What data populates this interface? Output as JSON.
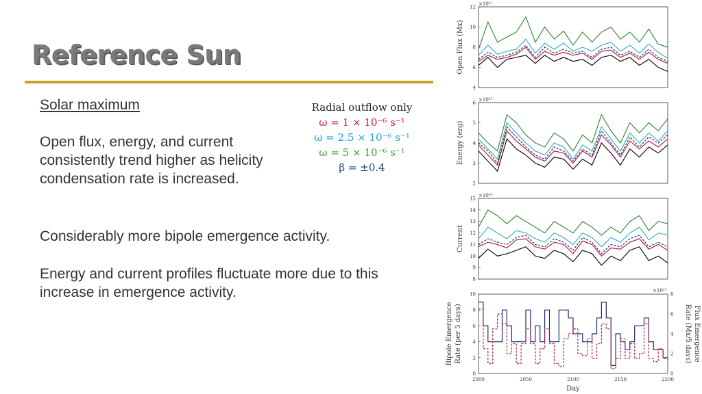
{
  "slide": {
    "title": "Reference Sun",
    "heading": "Solar maximum",
    "paragraph1": "Open flux, energy, and current consistently trend higher as helicity condensation rate is increased.",
    "paragraph2": "Considerably more bipole emergence activity.",
    "paragraph3": "Energy and current profiles fluctuate more due to this increase in emergence activity."
  },
  "legend": {
    "header": "Radial outflow only",
    "items": [
      {
        "label": "ω = 1 × 10⁻⁶ s⁻¹",
        "color": "#d01c2e"
      },
      {
        "label": "ω = 2.5 × 10⁻⁶ s⁻¹",
        "color": "#1a9fd6"
      },
      {
        "label": "ω = 5 × 10⁻⁶ s⁻¹",
        "color": "#3aa335"
      },
      {
        "label": "β = ±0.4",
        "color": "#1f3f73"
      }
    ]
  },
  "colors": {
    "red": "#b0213a",
    "cyan": "#3fb2b8",
    "green": "#3e8a3e",
    "navy": "#1f2a7a",
    "black": "#111111",
    "accent": "#c9a227"
  },
  "chart_data": [
    {
      "type": "line",
      "ylabel": "Open Flux (Mx)",
      "multiplier": "×10²²",
      "ylim": [
        4,
        12
      ],
      "yticks": [
        "4",
        "6",
        "8",
        "10",
        "12"
      ],
      "xlim": [
        2000,
        2200
      ],
      "x": [
        2000,
        2010,
        2020,
        2030,
        2040,
        2050,
        2060,
        2070,
        2080,
        2090,
        2100,
        2110,
        2120,
        2130,
        2140,
        2150,
        2160,
        2170,
        2180,
        2190,
        2200
      ],
      "series": [
        {
          "key": "green",
          "values": [
            7.8,
            10.5,
            8.5,
            9.0,
            9.5,
            11.0,
            8.5,
            10.0,
            8.8,
            9.6,
            8.2,
            9.5,
            8.5,
            9.5,
            10.0,
            8.8,
            9.5,
            8.5,
            9.8,
            8.3,
            8.0
          ]
        },
        {
          "key": "cyan",
          "values": [
            7.2,
            8.2,
            7.3,
            7.6,
            7.8,
            8.8,
            7.4,
            8.4,
            7.8,
            8.4,
            7.6,
            8.0,
            7.6,
            8.2,
            8.5,
            7.6,
            8.2,
            7.4,
            8.3,
            7.5,
            6.9
          ]
        },
        {
          "key": "navy",
          "values": [
            6.8,
            7.5,
            7.0,
            7.2,
            7.5,
            8.2,
            7.0,
            8.0,
            7.4,
            7.8,
            7.4,
            7.6,
            7.0,
            7.8,
            8.0,
            7.2,
            7.6,
            7.0,
            7.8,
            7.0,
            6.6
          ]
        },
        {
          "key": "red",
          "values": [
            6.6,
            7.2,
            6.8,
            7.0,
            7.3,
            8.0,
            6.8,
            7.6,
            7.2,
            7.5,
            7.2,
            7.4,
            6.8,
            7.6,
            7.7,
            7.0,
            7.4,
            6.8,
            7.5,
            6.8,
            6.4
          ]
        },
        {
          "key": "black",
          "values": [
            6.2,
            7.0,
            6.0,
            6.8,
            7.0,
            7.2,
            6.4,
            7.2,
            6.6,
            7.0,
            6.6,
            6.8,
            6.2,
            7.0,
            7.2,
            6.6,
            7.0,
            6.2,
            6.8,
            6.0,
            5.6
          ]
        }
      ]
    },
    {
      "type": "line",
      "ylabel": "Energy (erg)",
      "multiplier": "×10³³",
      "ylim": [
        2,
        6
      ],
      "yticks": [
        "2",
        "3",
        "4",
        "5",
        "6"
      ],
      "xlim": [
        2000,
        2200
      ],
      "x": [
        2000,
        2010,
        2020,
        2030,
        2040,
        2050,
        2060,
        2070,
        2080,
        2090,
        2100,
        2110,
        2120,
        2130,
        2140,
        2150,
        2160,
        2170,
        2180,
        2190,
        2200
      ],
      "series": [
        {
          "key": "green",
          "values": [
            4.5,
            4.0,
            3.6,
            5.4,
            5.0,
            4.4,
            4.0,
            3.8,
            4.5,
            4.2,
            3.6,
            4.4,
            4.0,
            5.4,
            4.6,
            4.0,
            5.0,
            4.5,
            5.0,
            4.6,
            5.2
          ]
        },
        {
          "key": "cyan",
          "values": [
            4.2,
            3.7,
            3.2,
            5.0,
            4.5,
            4.0,
            3.6,
            3.4,
            4.0,
            3.8,
            3.2,
            3.9,
            3.6,
            4.8,
            4.2,
            3.6,
            4.5,
            4.0,
            4.5,
            4.1,
            4.6
          ]
        },
        {
          "key": "navy",
          "values": [
            4.0,
            3.6,
            3.0,
            4.8,
            4.3,
            3.8,
            3.4,
            3.2,
            3.8,
            3.6,
            3.1,
            3.7,
            3.4,
            4.6,
            4.0,
            3.4,
            4.3,
            3.8,
            4.3,
            4.0,
            4.4
          ]
        },
        {
          "key": "red",
          "values": [
            3.9,
            3.4,
            2.9,
            4.6,
            4.1,
            3.7,
            3.3,
            3.1,
            3.6,
            3.5,
            3.0,
            3.6,
            3.3,
            4.4,
            3.9,
            3.3,
            4.1,
            3.7,
            4.1,
            3.8,
            4.2
          ]
        },
        {
          "key": "black",
          "values": [
            3.6,
            3.1,
            2.6,
            4.2,
            3.7,
            3.4,
            3.0,
            2.8,
            3.3,
            3.2,
            2.7,
            3.2,
            2.9,
            4.0,
            3.5,
            2.9,
            3.7,
            3.3,
            3.8,
            3.5,
            3.9
          ]
        }
      ]
    },
    {
      "type": "line",
      "ylabel": "Current",
      "multiplier": "×10³⁴",
      "ylim": [
        8,
        15
      ],
      "yticks": [
        "8",
        "9",
        "10",
        "11",
        "12",
        "13",
        "14",
        "15"
      ],
      "xlim": [
        2000,
        2200
      ],
      "x": [
        2000,
        2010,
        2020,
        2030,
        2040,
        2050,
        2060,
        2070,
        2080,
        2090,
        2100,
        2110,
        2120,
        2130,
        2140,
        2150,
        2160,
        2170,
        2180,
        2190,
        2200
      ],
      "series": [
        {
          "key": "green",
          "values": [
            12.5,
            14.0,
            13.5,
            12.8,
            13.5,
            13.0,
            12.5,
            12.0,
            13.0,
            12.5,
            12.0,
            13.0,
            12.5,
            11.8,
            12.5,
            12.0,
            13.0,
            13.5,
            12.2,
            13.0,
            12.8
          ]
        },
        {
          "key": "cyan",
          "values": [
            11.5,
            12.5,
            12.0,
            11.5,
            12.2,
            12.0,
            11.5,
            11.2,
            12.0,
            11.6,
            11.0,
            12.0,
            11.6,
            10.8,
            11.6,
            11.2,
            12.0,
            12.5,
            11.4,
            12.0,
            11.8
          ]
        },
        {
          "key": "navy",
          "values": [
            11.0,
            11.5,
            11.2,
            11.0,
            11.6,
            11.8,
            11.0,
            10.8,
            11.5,
            11.2,
            10.5,
            11.6,
            11.2,
            10.2,
            11.0,
            10.8,
            11.5,
            11.8,
            10.8,
            11.2,
            10.8
          ]
        },
        {
          "key": "red",
          "values": [
            10.8,
            11.2,
            11.0,
            10.7,
            11.4,
            11.5,
            10.8,
            10.6,
            11.2,
            11.0,
            10.2,
            11.3,
            11.0,
            10.0,
            10.7,
            10.6,
            11.2,
            11.5,
            10.6,
            11.0,
            10.5
          ]
        },
        {
          "key": "black",
          "values": [
            9.8,
            10.6,
            10.0,
            10.2,
            10.5,
            10.8,
            10.0,
            9.8,
            10.5,
            10.2,
            9.5,
            10.5,
            10.2,
            9.2,
            10.0,
            9.6,
            10.5,
            10.8,
            9.6,
            10.0,
            9.4
          ]
        }
      ]
    },
    {
      "type": "step",
      "ylabel": "Bipole Emergence Rate (per 5 days)",
      "ylabel_right": "Flux Emergence Rate (Mx/5 days)",
      "multiplier": "×10²²",
      "ylim": [
        0,
        10
      ],
      "yticks": [
        "0",
        "2",
        "4",
        "6",
        "8",
        "10"
      ],
      "ylim_right": [
        0,
        8
      ],
      "yticks_right": [
        "0",
        "2",
        "4",
        "6",
        "8"
      ],
      "xlim": [
        2000,
        2200
      ],
      "xticks": [
        "2000",
        "2050",
        "2100",
        "2150",
        "2200"
      ],
      "xlabel": "Day",
      "x": [
        2000,
        2005,
        2010,
        2015,
        2020,
        2025,
        2030,
        2035,
        2040,
        2045,
        2050,
        2055,
        2060,
        2065,
        2070,
        2075,
        2080,
        2085,
        2090,
        2095,
        2100,
        2105,
        2110,
        2115,
        2120,
        2125,
        2130,
        2135,
        2140,
        2145,
        2150,
        2155,
        2160,
        2165,
        2170,
        2175,
        2180,
        2185,
        2190,
        2195,
        2200
      ],
      "series": [
        {
          "key": "navy",
          "name": "Bipole Emergence",
          "values": [
            9,
            6,
            4,
            4,
            4,
            8,
            6,
            4,
            4,
            4,
            8,
            4,
            6,
            4,
            8,
            4,
            4,
            8,
            8,
            7,
            5,
            5,
            4,
            4,
            5,
            7,
            9,
            7,
            1,
            5,
            4,
            3,
            4,
            6,
            6,
            7,
            4,
            3,
            3,
            2,
            2
          ]
        },
        {
          "key": "red",
          "name": "Flux Emergence",
          "values": [
            6.5,
            2.5,
            1,
            4.5,
            6,
            5,
            2,
            3,
            1,
            3,
            4.5,
            3,
            1,
            2.5,
            4.5,
            3,
            1,
            0.7,
            3.5,
            4,
            4.5,
            2,
            1.8,
            3.5,
            1.5,
            3,
            5,
            4.5,
            0.5,
            1.5,
            3.5,
            1.5,
            3,
            1.5,
            2,
            5,
            1.5,
            1.2,
            2.5,
            1.5,
            1.2
          ]
        }
      ]
    }
  ]
}
